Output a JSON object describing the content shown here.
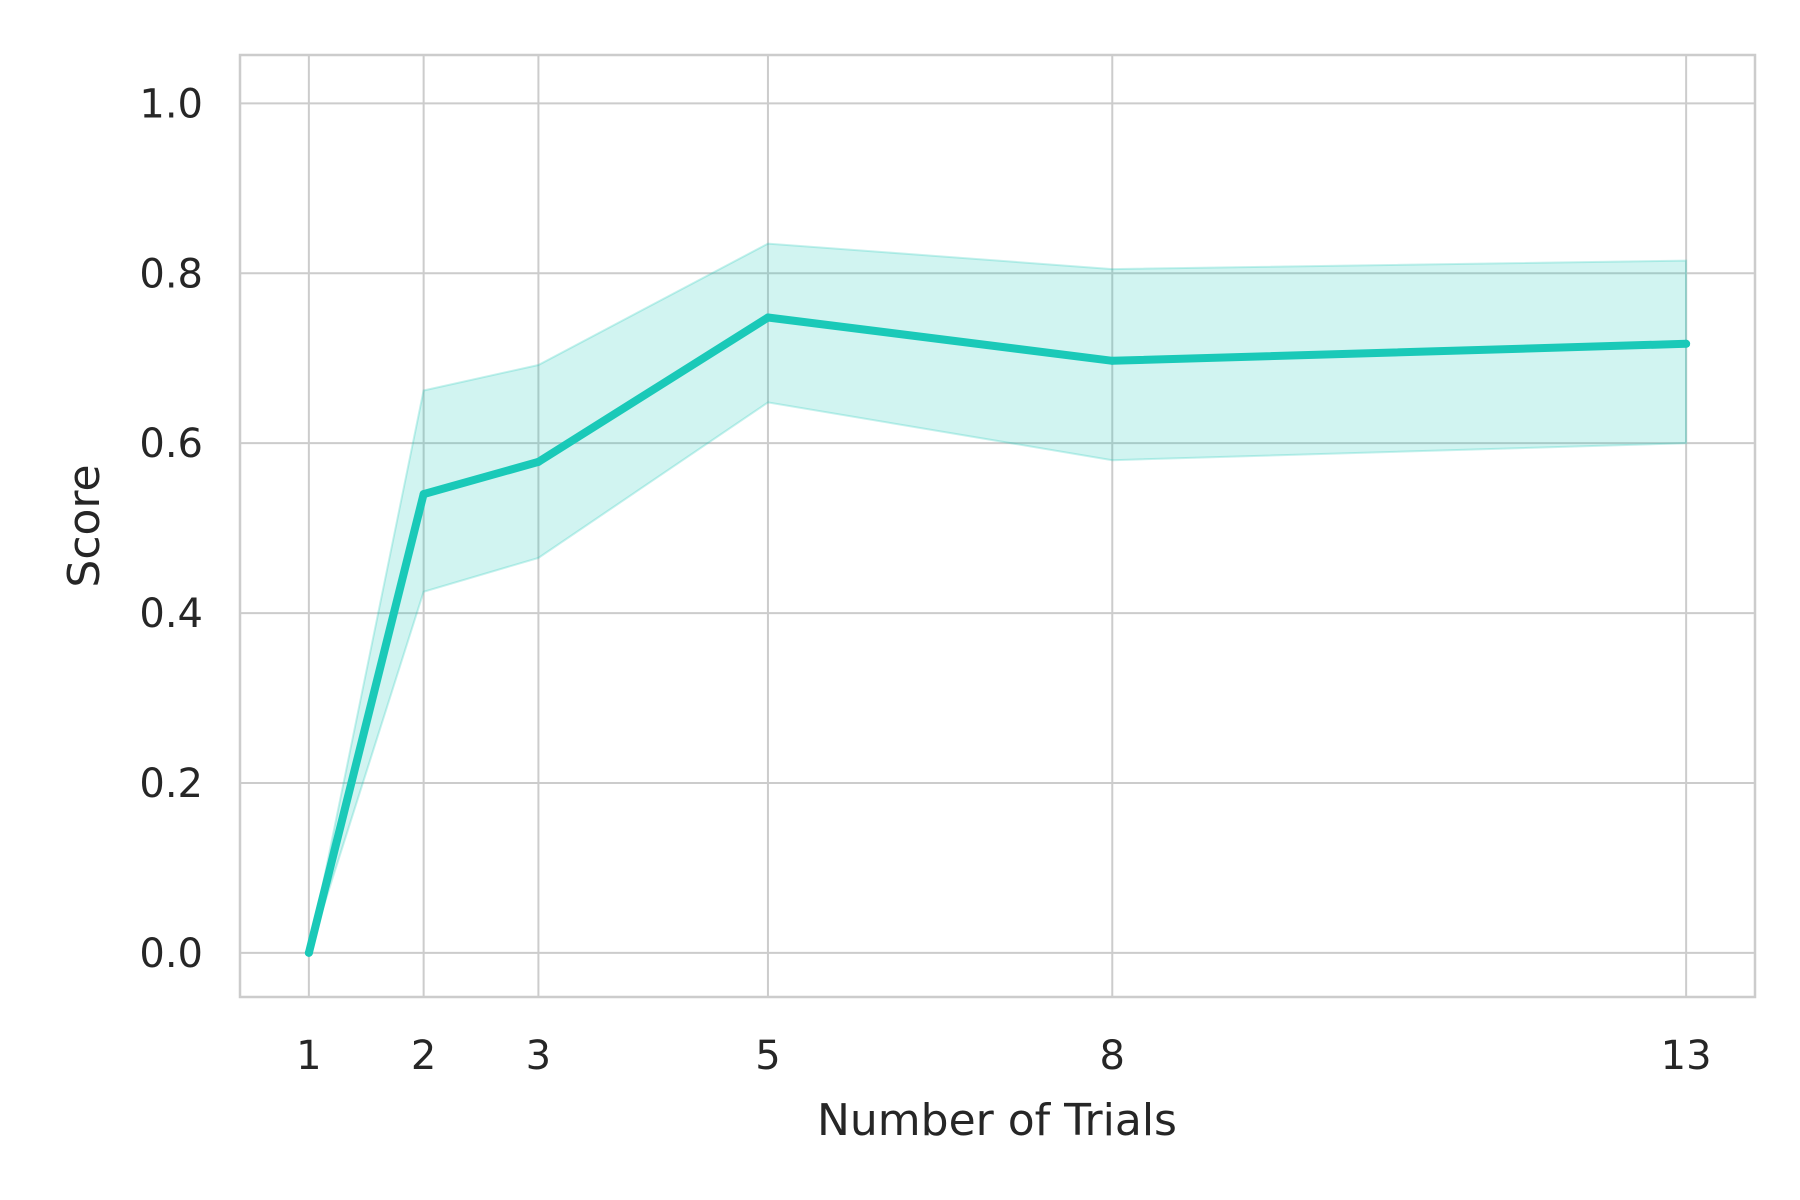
{
  "chart_data": {
    "type": "line",
    "title": "",
    "xlabel": "Number of Trials",
    "ylabel": "Score",
    "x_ticks": [
      "1",
      "2",
      "3",
      "5",
      "8",
      "13"
    ],
    "y_ticks": [
      "0.0",
      "0.2",
      "0.4",
      "0.6",
      "0.8",
      "1.0"
    ],
    "xlim": [
      0.4,
      13.6
    ],
    "ylim": [
      -0.052,
      1.057
    ],
    "grid": true,
    "legend": "none",
    "series": [
      {
        "x": [
          1,
          2,
          3,
          5,
          8,
          13
        ],
        "y": [
          0.0,
          0.54,
          0.578,
          0.748,
          0.697,
          0.717
        ],
        "ci_lower": [
          0.0,
          0.425,
          0.465,
          0.648,
          0.58,
          0.6
        ],
        "ci_upper": [
          0.0,
          0.662,
          0.692,
          0.835,
          0.805,
          0.815
        ]
      }
    ],
    "colors": {
      "line": "#1ac9b8",
      "band": "#1ac9b8"
    }
  }
}
